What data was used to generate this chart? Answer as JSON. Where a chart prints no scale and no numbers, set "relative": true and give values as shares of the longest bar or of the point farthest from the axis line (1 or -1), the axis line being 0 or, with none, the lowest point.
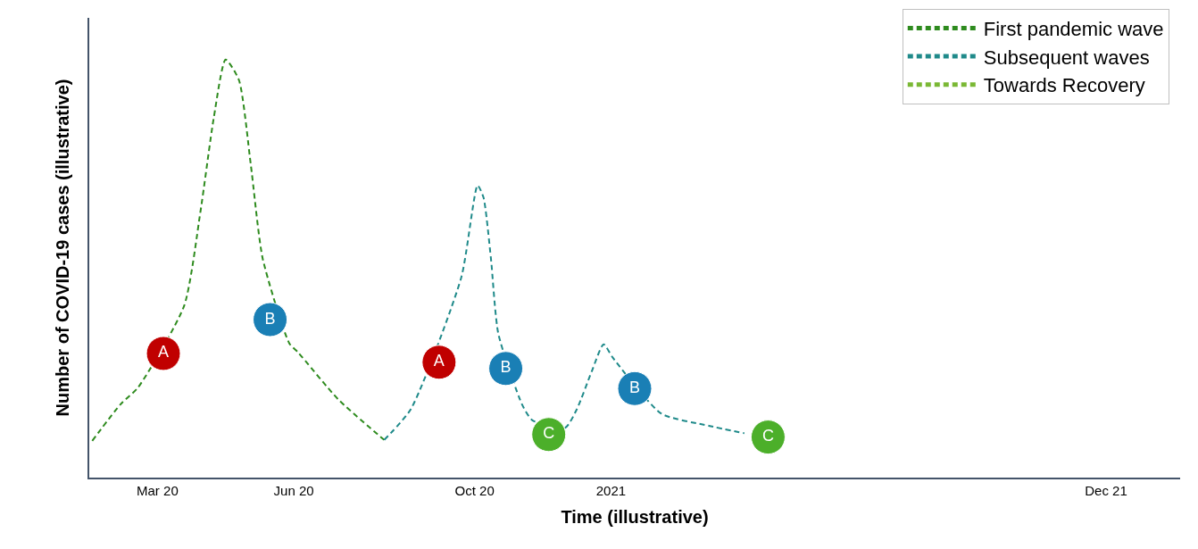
{
  "chart_data": {
    "type": "line",
    "relative": true,
    "xlabel": "Time (illustrative)",
    "ylabel": "Number of COVID-19 cases (illustrative)",
    "xlim": [
      "2020-01-15",
      "2022-01-20"
    ],
    "xticks": [
      {
        "value": "2020-03-01",
        "label": "Mar 20"
      },
      {
        "value": "2020-06-01",
        "label": "Jun 20"
      },
      {
        "value": "2020-10-01",
        "label": "Oct 20"
      },
      {
        "value": "2021-01-01",
        "label": "2021"
      },
      {
        "value": "2021-12-01",
        "label": "Dec 21"
      }
    ],
    "line_style": "dashed",
    "legend": "top right",
    "series": [
      {
        "name": "First pandemic wave",
        "color": "#2e8b1e",
        "x": [
          "2020-01-17",
          "2020-02-05",
          "2020-02-17",
          "2020-03-19",
          "2020-03-30",
          "2020-04-08",
          "2020-04-16",
          "2020-04-25",
          "2020-05-03",
          "2020-05-11",
          "2020-05-29",
          "2020-06-04",
          "2020-07-01",
          "2020-08-01"
        ],
        "values": [
          0.088,
          0.175,
          0.216,
          0.411,
          0.636,
          0.861,
          1,
          0.951,
          0.748,
          0.524,
          0.321,
          0.299,
          0.187,
          0.09
        ]
      },
      {
        "name": "Subsequent waves",
        "color": "#1f8a8a",
        "x": [
          "2020-08-01",
          "2020-08-19",
          "2020-09-22",
          "2020-10-03",
          "2020-10-07",
          "2020-10-12",
          "2020-10-17",
          "2020-11-02",
          "2020-11-09",
          "2020-12-01",
          "2020-12-09",
          "2020-12-19",
          "2020-12-27",
          "2021-01-02",
          "2021-02-04",
          "2021-03-08",
          "2021-04-01"
        ],
        "values": [
          0.09,
          0.164,
          0.479,
          0.699,
          0.67,
          0.524,
          0.344,
          0.175,
          0.137,
          0.119,
          0.164,
          0.254,
          0.319,
          0.288,
          0.153,
          0.124,
          0.106
        ]
      },
      {
        "name": "Towards Recovery",
        "color": "#7ab834"
      },
      {
        "name": "A",
        "type": "scatter",
        "marker": "circle",
        "color": "#c00000",
        "x": [
          "2020-03-05",
          "2020-09-07"
        ],
        "values": [
          0.297,
          0.276
        ]
      },
      {
        "name": "B",
        "type": "scatter",
        "marker": "circle",
        "color": "#1a7fb5",
        "x": [
          "2020-05-16",
          "2020-10-22",
          "2021-01-17"
        ],
        "values": [
          0.378,
          0.261,
          0.213
        ]
      },
      {
        "name": "C",
        "type": "scatter",
        "marker": "circle",
        "color": "#4caf2a",
        "x": [
          "2020-11-20",
          "2021-04-17"
        ],
        "values": [
          0.103,
          0.097
        ]
      }
    ]
  }
}
